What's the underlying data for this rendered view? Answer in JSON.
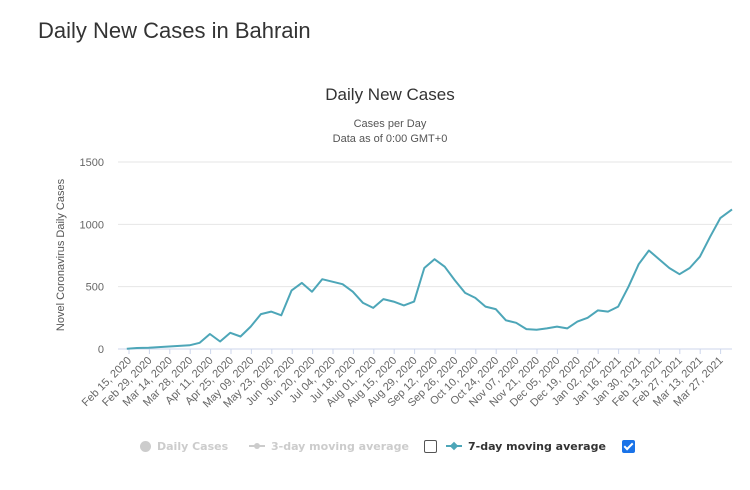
{
  "page": {
    "title": "Daily New Cases in Bahrain"
  },
  "chart_data": {
    "type": "line",
    "title": "Daily New Cases",
    "subtitle_line1": "Cases per Day",
    "subtitle_line2": "Data as of 0:00 GMT+0",
    "ylabel": "Novel Coronavirus Daily Cases",
    "xlabel": "",
    "ylim": [
      0,
      1500
    ],
    "y_ticks": [
      0,
      500,
      1000,
      1500
    ],
    "x_range": [
      "2020-02-15",
      "2021-04-11"
    ],
    "x_tick_labels": [
      "Feb 15, 2020",
      "Feb 29, 2020",
      "Mar 14, 2020",
      "Mar 28, 2020",
      "Apr 11, 2020",
      "Apr 25, 2020",
      "May 09, 2020",
      "May 23, 2020",
      "Jun 06, 2020",
      "Jun 20, 2020",
      "Jul 04, 2020",
      "Jul 18, 2020",
      "Aug 01, 2020",
      "Aug 15, 2020",
      "Aug 29, 2020",
      "Sep 12, 2020",
      "Sep 26, 2020",
      "Oct 10, 2020",
      "Oct 24, 2020",
      "Nov 07, 2020",
      "Nov 21, 2020",
      "Dec 05, 2020",
      "Dec 19, 2020",
      "Jan 02, 2021",
      "Jan 16, 2021",
      "Jan 30, 2021",
      "Feb 13, 2021",
      "Feb 27, 2021",
      "Mar 13, 2021",
      "Mar 27, 2021"
    ],
    "grid": true,
    "legend_placement": "bottom",
    "series": [
      {
        "name": "7-day moving average",
        "color": "#4da6b8",
        "points": [
          [
            "2020-02-21",
            2
          ],
          [
            "2020-02-28",
            8
          ],
          [
            "2020-03-07",
            10
          ],
          [
            "2020-03-14",
            15
          ],
          [
            "2020-03-21",
            20
          ],
          [
            "2020-03-28",
            25
          ],
          [
            "2020-04-04",
            30
          ],
          [
            "2020-04-11",
            50
          ],
          [
            "2020-04-18",
            120
          ],
          [
            "2020-04-25",
            60
          ],
          [
            "2020-05-02",
            130
          ],
          [
            "2020-05-09",
            100
          ],
          [
            "2020-05-16",
            180
          ],
          [
            "2020-05-23",
            280
          ],
          [
            "2020-05-30",
            300
          ],
          [
            "2020-06-06",
            270
          ],
          [
            "2020-06-13",
            470
          ],
          [
            "2020-06-20",
            530
          ],
          [
            "2020-06-27",
            460
          ],
          [
            "2020-07-04",
            560
          ],
          [
            "2020-07-11",
            540
          ],
          [
            "2020-07-18",
            520
          ],
          [
            "2020-07-25",
            460
          ],
          [
            "2020-08-01",
            370
          ],
          [
            "2020-08-08",
            330
          ],
          [
            "2020-08-15",
            400
          ],
          [
            "2020-08-22",
            380
          ],
          [
            "2020-08-29",
            350
          ],
          [
            "2020-09-05",
            380
          ],
          [
            "2020-09-12",
            650
          ],
          [
            "2020-09-19",
            720
          ],
          [
            "2020-09-26",
            660
          ],
          [
            "2020-10-03",
            550
          ],
          [
            "2020-10-10",
            450
          ],
          [
            "2020-10-17",
            410
          ],
          [
            "2020-10-24",
            340
          ],
          [
            "2020-10-31",
            320
          ],
          [
            "2020-11-07",
            230
          ],
          [
            "2020-11-14",
            210
          ],
          [
            "2020-11-21",
            160
          ],
          [
            "2020-11-28",
            155
          ],
          [
            "2020-12-05",
            165
          ],
          [
            "2020-12-12",
            180
          ],
          [
            "2020-12-19",
            165
          ],
          [
            "2020-12-26",
            220
          ],
          [
            "2021-01-02",
            250
          ],
          [
            "2021-01-09",
            310
          ],
          [
            "2021-01-16",
            300
          ],
          [
            "2021-01-23",
            340
          ],
          [
            "2021-01-30",
            500
          ],
          [
            "2021-02-06",
            680
          ],
          [
            "2021-02-13",
            790
          ],
          [
            "2021-02-20",
            720
          ],
          [
            "2021-02-27",
            650
          ],
          [
            "2021-03-06",
            600
          ],
          [
            "2021-03-13",
            650
          ],
          [
            "2021-03-20",
            740
          ],
          [
            "2021-03-27",
            900
          ],
          [
            "2021-04-03",
            1050
          ],
          [
            "2021-04-11",
            1120
          ]
        ]
      }
    ]
  },
  "legend": {
    "items": [
      {
        "label": "Daily Cases",
        "visible": false
      },
      {
        "label": "3-day moving average",
        "visible": false
      },
      {
        "label": "7-day moving average",
        "visible": true
      }
    ]
  }
}
